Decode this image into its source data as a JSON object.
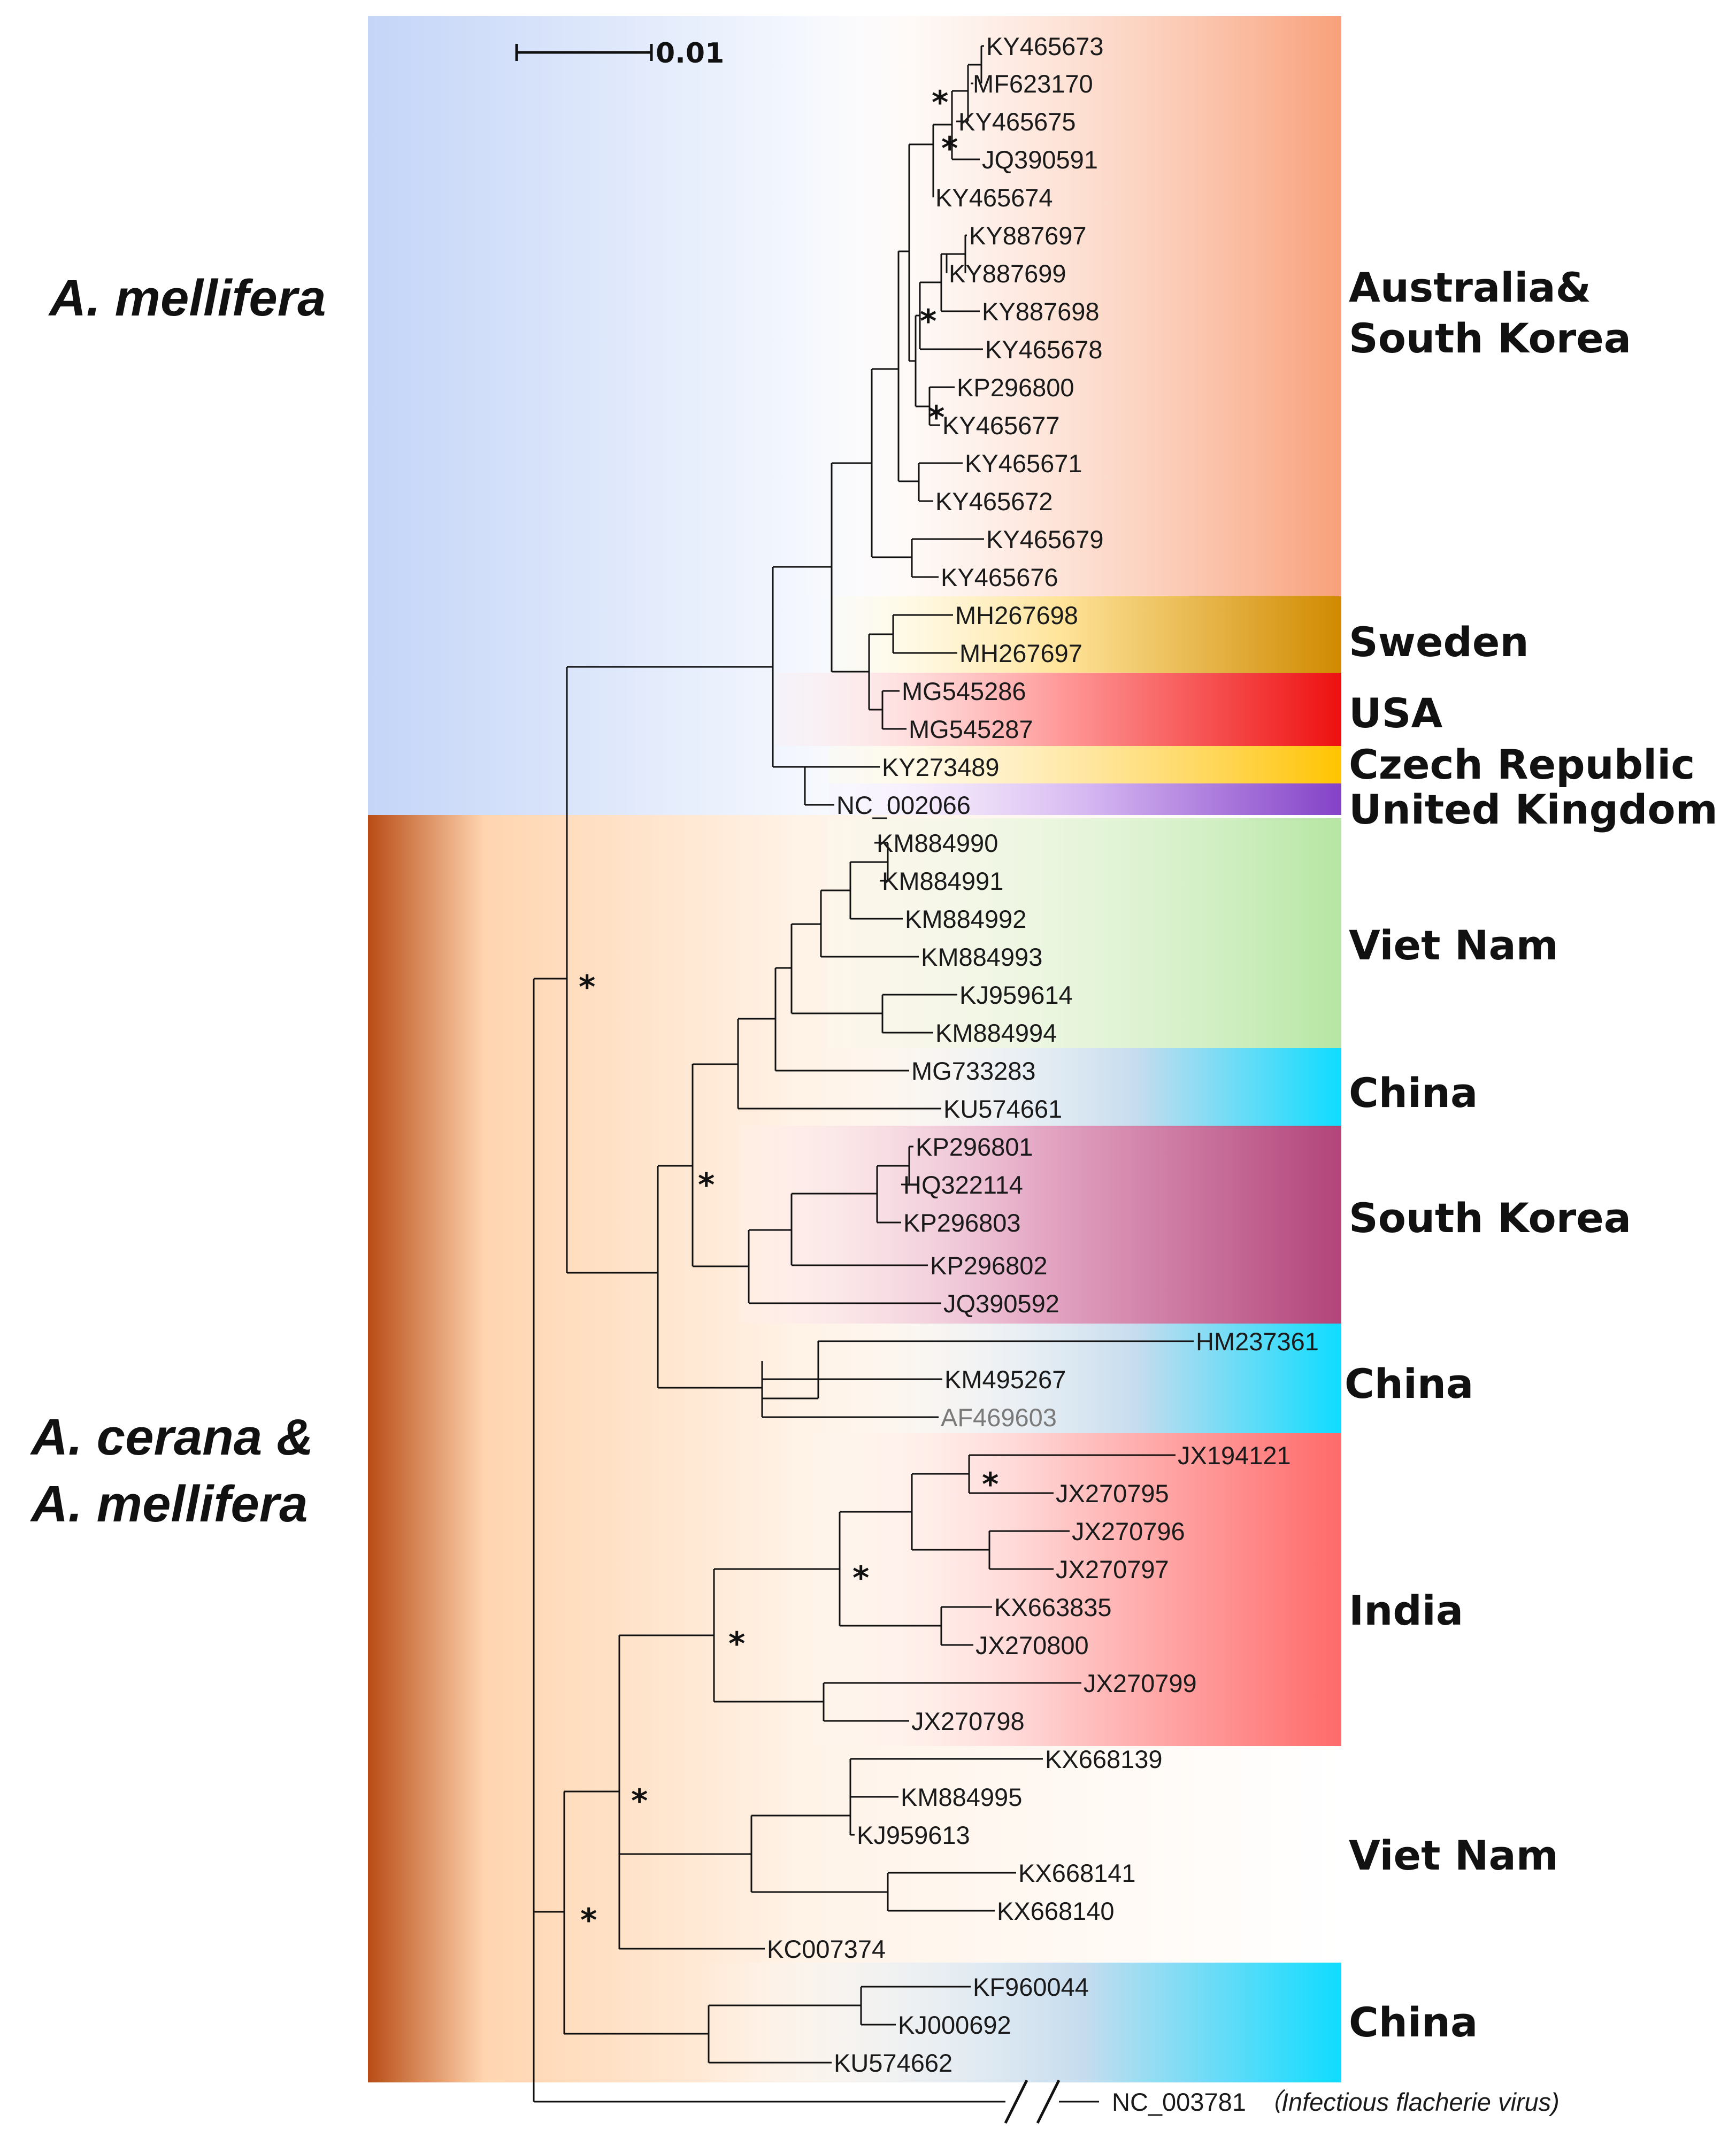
{
  "scale_bar": {
    "label": "0.01"
  },
  "hosts": [
    {
      "id": "mellifera",
      "lines": [
        "A. mellifera"
      ]
    },
    {
      "id": "cerana",
      "lines": [
        "A. cerana &",
        "A. mellifera"
      ]
    }
  ],
  "regions": [
    {
      "id": "aus",
      "lines": [
        "Australia&",
        "South Korea"
      ]
    },
    {
      "id": "swe",
      "lines": [
        "Sweden"
      ]
    },
    {
      "id": "usa",
      "lines": [
        "USA"
      ]
    },
    {
      "id": "cze",
      "lines": [
        "Czech Republic"
      ]
    },
    {
      "id": "uk",
      "lines": [
        "United Kingdom"
      ]
    },
    {
      "id": "vn1",
      "lines": [
        "Viet Nam"
      ]
    },
    {
      "id": "cn1",
      "lines": [
        "China"
      ]
    },
    {
      "id": "sk",
      "lines": [
        "South Korea"
      ]
    },
    {
      "id": "cn2",
      "lines": [
        "China"
      ]
    },
    {
      "id": "ind",
      "lines": [
        "India"
      ]
    },
    {
      "id": "vn2",
      "lines": [
        "Viet Nam"
      ]
    },
    {
      "id": "cn3",
      "lines": [
        "China"
      ]
    }
  ],
  "leaves": [
    "KY465673",
    "MF623170",
    "KY465675",
    "JQ390591",
    "KY465674",
    "KY887697",
    "KY887699",
    "KY887698",
    "KY465678",
    "KP296800",
    "KY465677",
    "KY465671",
    "KY465672",
    "KY465679",
    "KY465676",
    "MH267698",
    "MH267697",
    "MG545286",
    "MG545287",
    "KY273489",
    "NC_002066",
    "KM884990",
    "KM884991",
    "KM884992",
    "KM884993",
    "KJ959614",
    "KM884994",
    "MG733283",
    "KU574661",
    "KP296801",
    "HQ322114",
    "KP296803",
    "KP296802",
    "JQ390592",
    "HM237361",
    "KM495267",
    "AF469603",
    "JX194121",
    "JX270795",
    "JX270796",
    "JX270797",
    "KX663835",
    "JX270800",
    "JX270799",
    "JX270798",
    "KX668139",
    "KM884995",
    "KJ959613",
    "KX668141",
    "KX668140",
    "KC007374",
    "KF960044",
    "KJ000692",
    "KU574662",
    "NC_003781"
  ],
  "outgroup_note": {
    "open": "（",
    "name": "Infectious flacherie virus",
    "close": ")"
  },
  "support_marker": "*",
  "colors": {
    "mellifera_band": "#c7d7f8",
    "cerana_band": "#c0521c",
    "australia": "#f7a07a",
    "sweden": "#d9920a",
    "usa": "#ee1b1b",
    "czech": "#ffc800",
    "uk": "#8a49c9",
    "vietnam": "#b8e8a6",
    "china": "#12dcff",
    "south_korea": "#b5487c",
    "india": "#ff6f6f"
  }
}
